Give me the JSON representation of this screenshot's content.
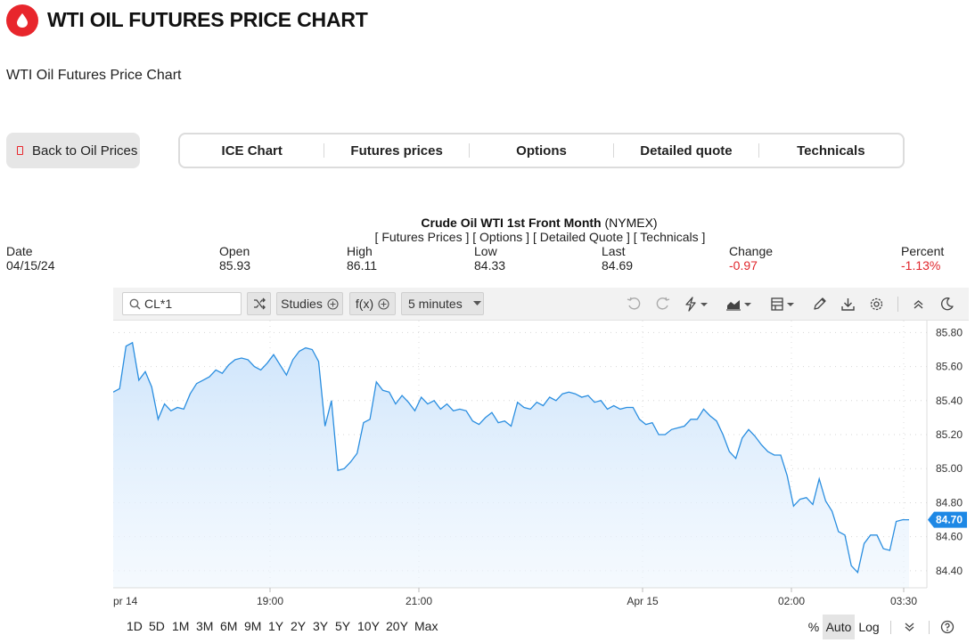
{
  "header": {
    "title": "WTI OIL FUTURES PRICE CHART",
    "subtitle": "WTI Oil Futures Price Chart"
  },
  "back_button": {
    "label": "Back to Oil Prices"
  },
  "nav_tabs": [
    "ICE Chart",
    "Futures prices",
    "Options",
    "Detailed quote",
    "Technicals"
  ],
  "quote": {
    "name": "Crude Oil WTI 1st Front Month",
    "exchange": "(NYMEX)",
    "links": "[ Futures Prices ] [ Options ] [ Detailed Quote ] [ Technicals ]",
    "date_label": "Date",
    "date_value": "04/15/24",
    "open_label": "Open",
    "open_value": "85.93",
    "high_label": "High",
    "high_value": "86.11",
    "low_label": "Low",
    "low_value": "84.33",
    "last_label": "Last",
    "last_value": "84.69",
    "change_label": "Change",
    "change_value": "-0.97",
    "percent_label": "Percent",
    "percent_value": "-1.13%"
  },
  "toolbar": {
    "symbol": "CL*1",
    "studies_label": "Studies",
    "fx_label": "f(x)",
    "interval_label": "5 minutes"
  },
  "ranges": [
    "1D",
    "5D",
    "1M",
    "3M",
    "6M",
    "9M",
    "1Y",
    "2Y",
    "3Y",
    "5Y",
    "10Y",
    "20Y",
    "Max"
  ],
  "scale_options": {
    "percent": "%",
    "auto": "Auto",
    "log": "Log"
  },
  "colors": {
    "brand_red": "#e8262c",
    "line": "#2a8ee0",
    "fill_top": "#cfe5fb",
    "last_badge": "#1e88e5"
  },
  "chart_data": {
    "type": "area",
    "ylim": [
      84.3,
      85.87
    ],
    "yticks": [
      "85.80",
      "85.60",
      "85.40",
      "85.20",
      "85.00",
      "84.80",
      "84.60",
      "84.40"
    ],
    "xticks": [
      "pr 14",
      "19:00",
      "21:00",
      "Apr 15",
      "02:00",
      "03:30"
    ],
    "last_label": "84.70",
    "values": [
      85.45,
      85.47,
      85.72,
      85.74,
      85.52,
      85.57,
      85.48,
      85.29,
      85.38,
      85.34,
      85.36,
      85.35,
      85.44,
      85.5,
      85.52,
      85.54,
      85.58,
      85.56,
      85.61,
      85.64,
      85.65,
      85.64,
      85.6,
      85.58,
      85.62,
      85.67,
      85.61,
      85.55,
      85.64,
      85.69,
      85.71,
      85.7,
      85.63,
      85.25,
      85.4,
      84.99,
      85.0,
      85.04,
      85.09,
      85.27,
      85.29,
      85.51,
      85.46,
      85.45,
      85.38,
      85.43,
      85.39,
      85.34,
      85.42,
      85.38,
      85.4,
      85.35,
      85.38,
      85.34,
      85.35,
      85.34,
      85.28,
      85.26,
      85.3,
      85.33,
      85.27,
      85.28,
      85.25,
      85.39,
      85.36,
      85.35,
      85.39,
      85.37,
      85.42,
      85.4,
      85.44,
      85.45,
      85.44,
      85.42,
      85.43,
      85.39,
      85.4,
      85.35,
      85.37,
      85.35,
      85.36,
      85.36,
      85.29,
      85.26,
      85.27,
      85.2,
      85.2,
      85.23,
      85.24,
      85.25,
      85.29,
      85.29,
      85.35,
      85.31,
      85.28,
      85.2,
      85.1,
      85.06,
      85.18,
      85.23,
      85.19,
      85.14,
      85.1,
      85.08,
      85.08,
      84.96,
      84.78,
      84.82,
      84.83,
      84.79,
      84.94,
      84.81,
      84.75,
      84.63,
      84.61,
      84.43,
      84.39,
      84.56,
      84.61,
      84.61,
      84.53,
      84.52,
      84.69,
      84.7,
      84.7
    ]
  }
}
